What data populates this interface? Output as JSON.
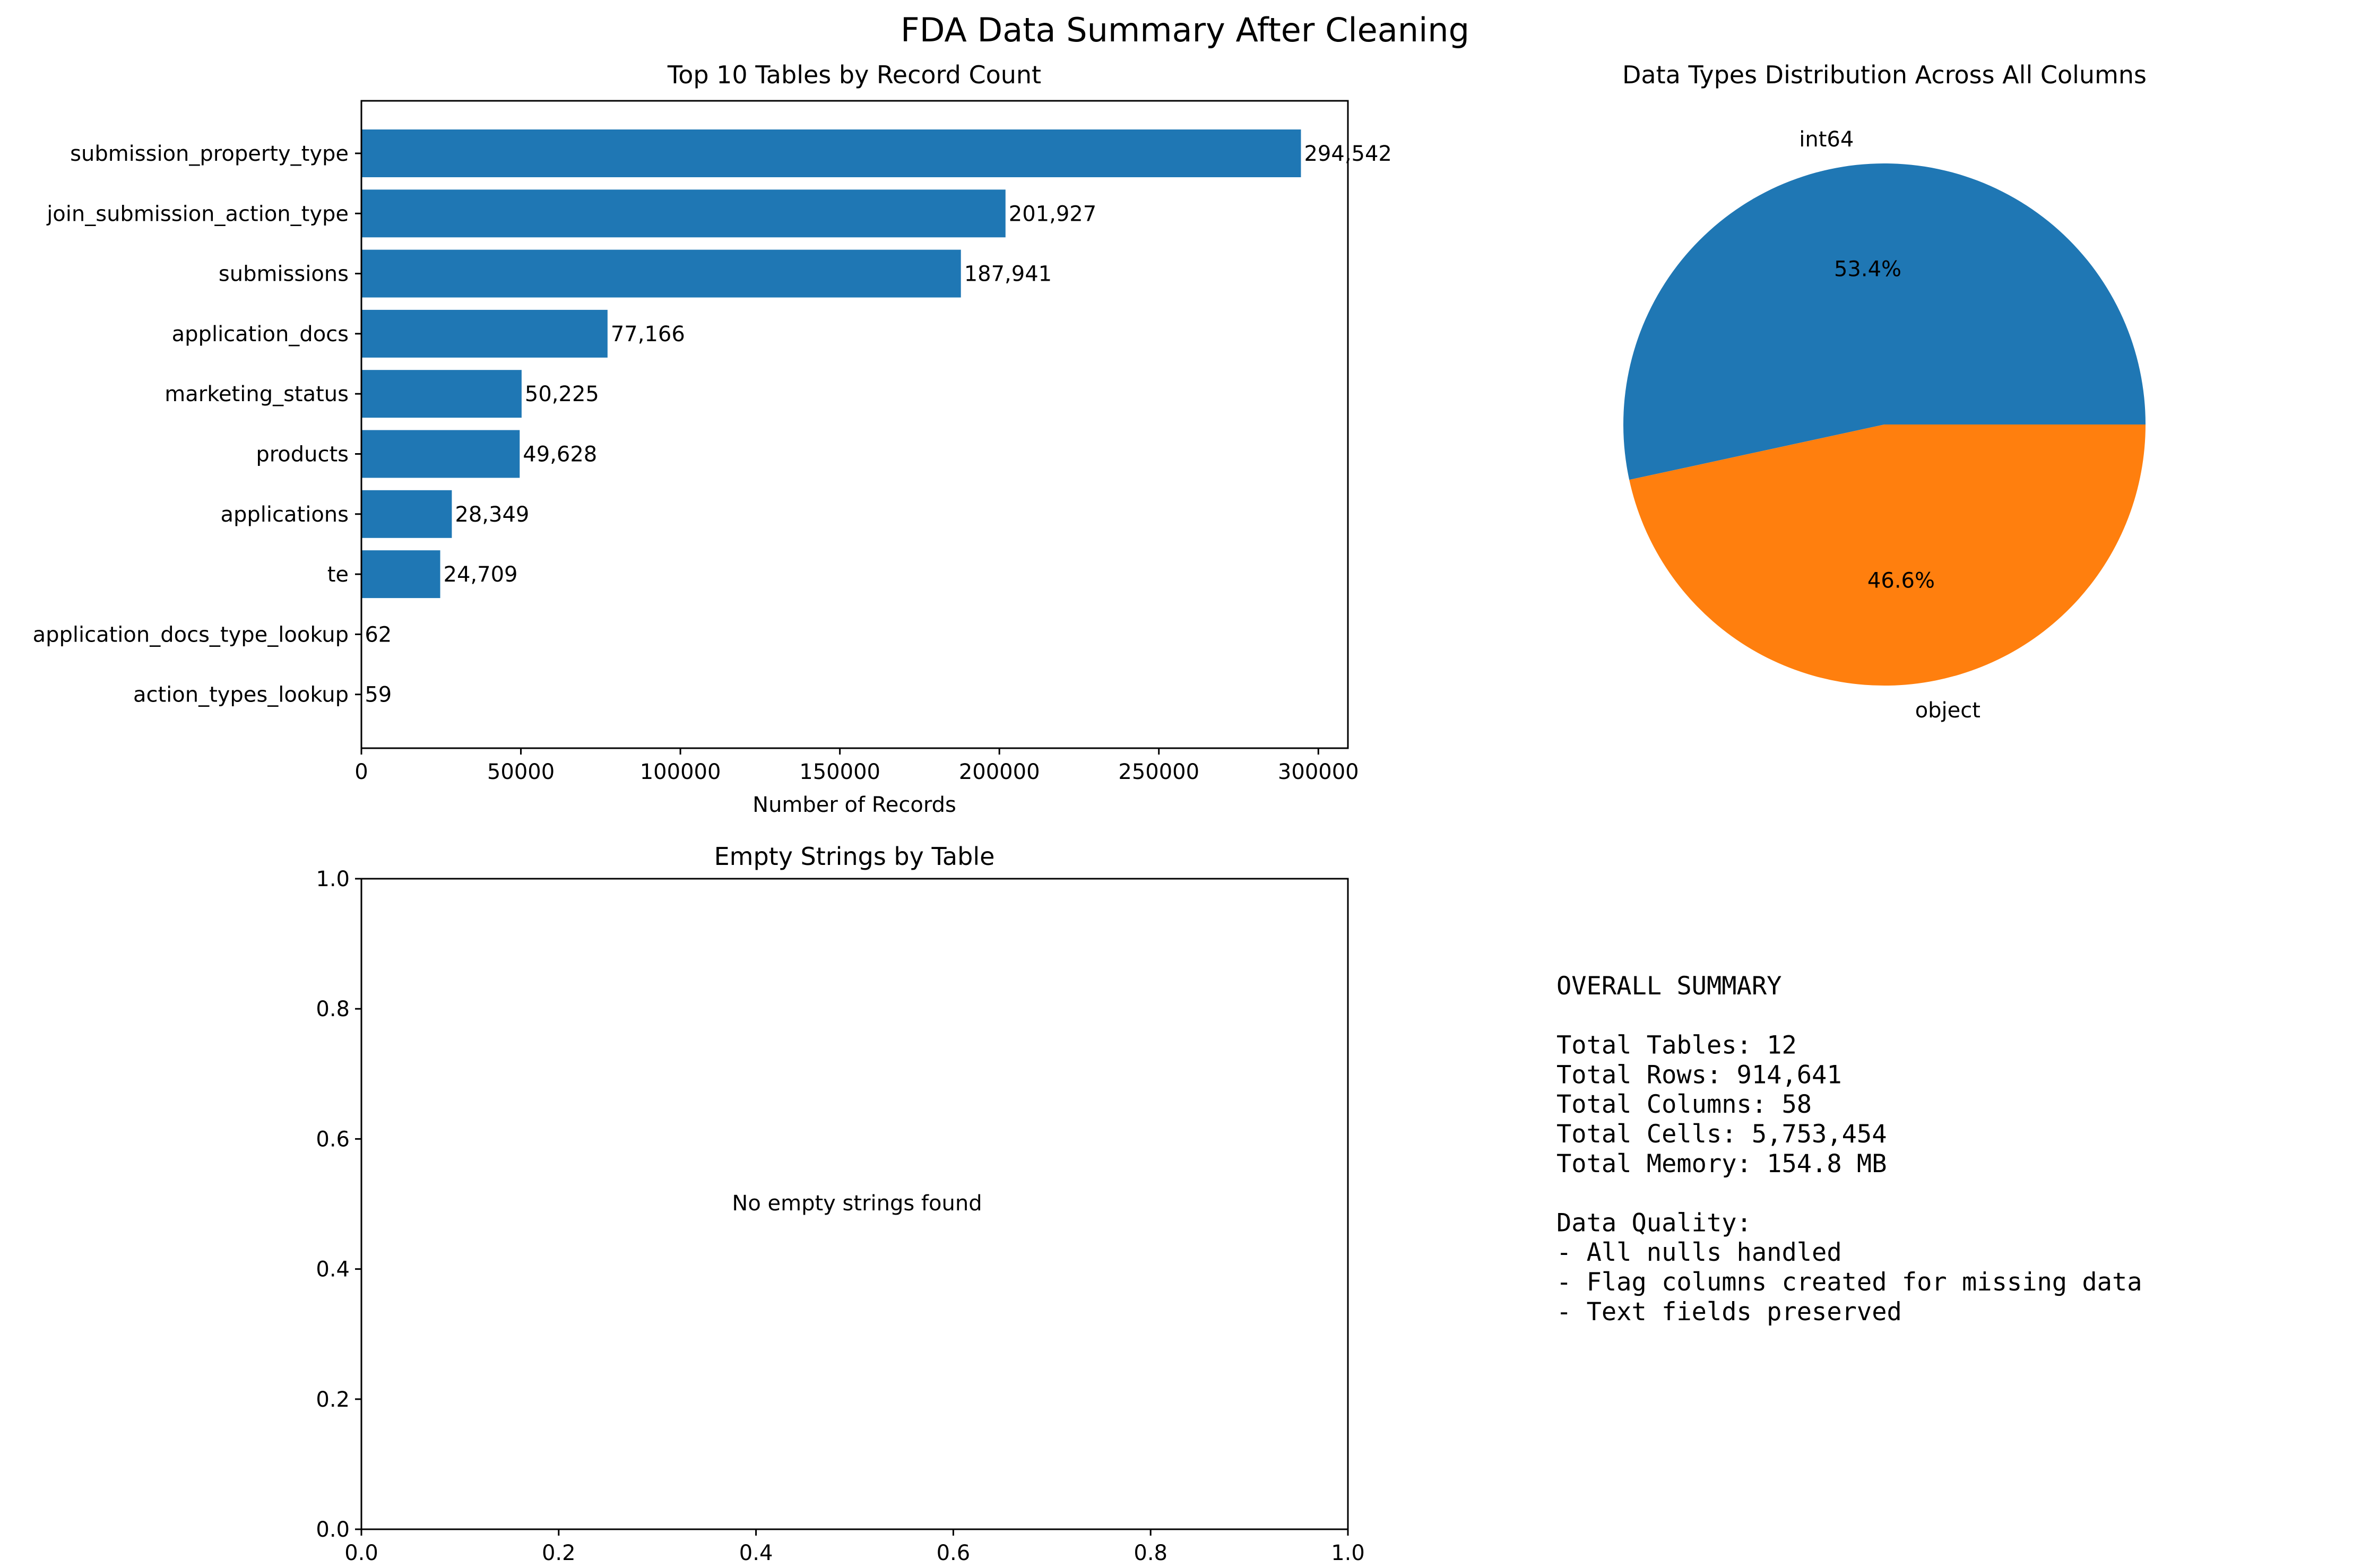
{
  "figure": {
    "suptitle": "FDA Data Summary After Cleaning"
  },
  "chart_data": [
    {
      "type": "bar",
      "orientation": "horizontal",
      "title": "Top 10 Tables by Record Count",
      "xlabel": "Number of Records",
      "ylabel": "",
      "categories": [
        "submission_property_type",
        "join_submission_action_type",
        "submissions",
        "application_docs",
        "marketing_status",
        "products",
        "applications",
        "te",
        "application_docs_type_lookup",
        "action_types_lookup"
      ],
      "values": [
        294542,
        201927,
        187941,
        77166,
        50225,
        49628,
        28349,
        24709,
        62,
        59
      ],
      "data_labels": [
        "294,542",
        "201,927",
        "187,941",
        "77,166",
        "50,225",
        "49,628",
        "28,349",
        "24,709",
        "62",
        "59"
      ],
      "xlim": [
        0,
        309269
      ],
      "xticks": [
        0,
        50000,
        100000,
        150000,
        200000,
        250000,
        300000
      ],
      "xtick_labels": [
        "0",
        "50000",
        "100000",
        "150000",
        "200000",
        "250000",
        "300000"
      ],
      "color": "#1f77b4",
      "grid": false
    },
    {
      "type": "pie",
      "title": "Data Types Distribution Across All Columns",
      "labels": [
        "int64",
        "object"
      ],
      "values": [
        53.4,
        46.6
      ],
      "pct_labels": [
        "53.4%",
        "46.6%"
      ],
      "colors": [
        "#1f77b4",
        "#ff7f0e"
      ],
      "start_angle_deg": 0
    },
    {
      "type": "bar",
      "title": "Empty Strings by Table",
      "xlabel": "",
      "ylabel": "",
      "categories": [],
      "values": [],
      "annotation": "No empty strings found",
      "xlim": [
        0,
        1
      ],
      "ylim": [
        0,
        1
      ],
      "xtick_labels": [
        "0.0",
        "0.2",
        "0.4",
        "0.6",
        "0.8",
        "1.0"
      ],
      "ytick_labels": [
        "0.0",
        "0.2",
        "0.4",
        "0.6",
        "0.8",
        "1.0"
      ],
      "grid": false
    }
  ],
  "summary": {
    "lines": [
      "OVERALL SUMMARY",
      "",
      "Total Tables: 12",
      "Total Rows: 914,641",
      "Total Columns: 58",
      "Total Cells: 5,753,454",
      "Total Memory: 154.8 MB",
      "",
      "Data Quality:",
      "- All nulls handled",
      "- Flag columns created for missing data",
      "- Text fields preserved"
    ]
  }
}
